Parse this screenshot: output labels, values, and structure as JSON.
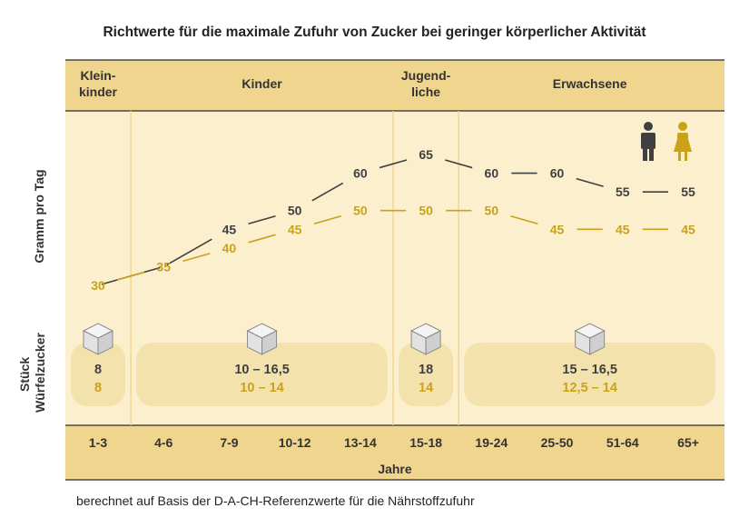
{
  "title": "Richtwerte für die maximale Zufuhr von Zucker bei geringer körperlicher Aktivität",
  "footnote": "berechnet auf Basis der D-A-CH-Referenzwerte für die Nährstoffzufuhr",
  "colors": {
    "male": "#404040",
    "female": "#c9a21a",
    "band": "#f0d58f",
    "panel": "#fbefcd",
    "box": "#f4e2ad"
  },
  "chart_data": {
    "type": "line",
    "ylabel": "Gramm pro Tag",
    "xlabel": "Jahre",
    "categories": [
      "1-3",
      "4-6",
      "7-9",
      "10-12",
      "13-14",
      "15-18",
      "19-24",
      "25-50",
      "51-64",
      "65+"
    ],
    "groups": [
      {
        "label_lines": [
          "Klein-",
          "kinder"
        ],
        "from": 0,
        "to": 0
      },
      {
        "label_lines": [
          "Kinder"
        ],
        "from": 1,
        "to": 4
      },
      {
        "label_lines": [
          "Jugend-",
          "liche"
        ],
        "from": 5,
        "to": 5
      },
      {
        "label_lines": [
          "Erwachsene"
        ],
        "from": 6,
        "to": 9
      }
    ],
    "series": [
      {
        "gender": "male",
        "values": [
          30,
          35,
          45,
          50,
          60,
          65,
          60,
          60,
          55,
          55
        ]
      },
      {
        "gender": "female",
        "values": [
          30,
          35,
          40,
          45,
          50,
          50,
          50,
          45,
          45,
          45
        ]
      }
    ],
    "value_labels": {
      "male": [
        "",
        "",
        "45",
        "50",
        "60",
        "65",
        "60",
        "60",
        "55",
        "55"
      ],
      "female": [
        "30",
        "35",
        "40",
        "45",
        "50",
        "50",
        "50",
        "45",
        "45",
        "45"
      ]
    },
    "sugar_cubes": {
      "ylabel_lines": [
        "Stück",
        "Würfelzucker"
      ],
      "groups": [
        {
          "male": "8",
          "female": "8"
        },
        {
          "male": "10 – 16,5",
          "female": "10 – 14"
        },
        {
          "male": "18",
          "female": "14"
        },
        {
          "male": "15 – 16,5",
          "female": "12,5 – 14"
        }
      ]
    },
    "legend": [
      {
        "gender": "male",
        "icon": "male-person-icon"
      },
      {
        "gender": "female",
        "icon": "female-person-icon"
      }
    ],
    "legend_position": "top-right"
  }
}
